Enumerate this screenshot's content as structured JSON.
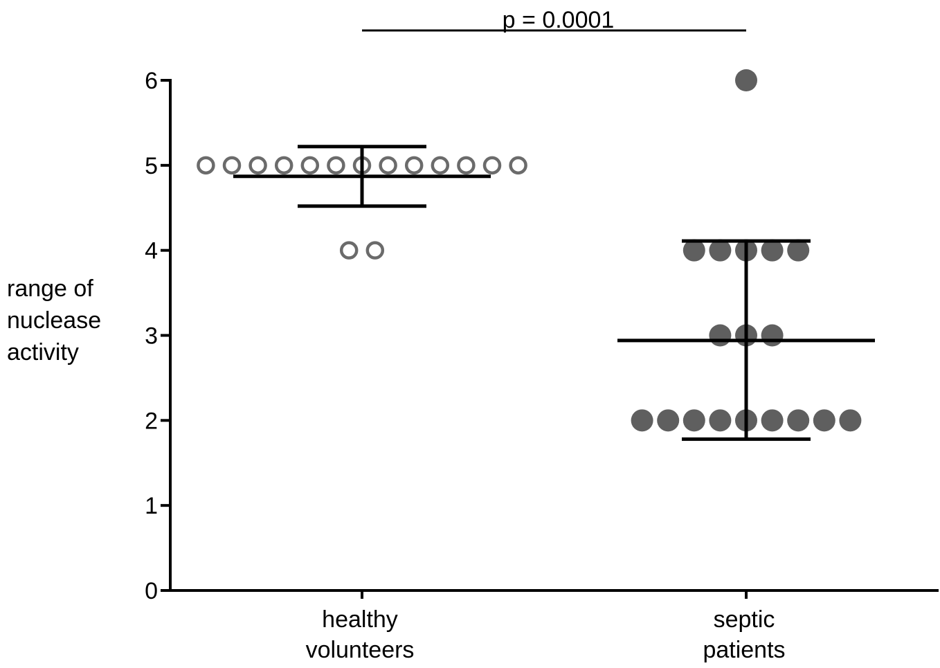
{
  "chart_data": {
    "type": "scatter",
    "subtype": "dot-plot-with-error-bars",
    "title": "",
    "ylabel_lines": [
      "range of",
      "nuclease",
      "activity"
    ],
    "ylim": [
      0,
      6
    ],
    "yticks": [
      0,
      1,
      2,
      3,
      4,
      5,
      6
    ],
    "categories": [
      {
        "lines": [
          "healthy",
          "volunteers"
        ]
      },
      {
        "lines": [
          "septic",
          "patients"
        ]
      }
    ],
    "series": [
      {
        "category": 0,
        "marker": "open-circle",
        "values": [
          5,
          5,
          5,
          5,
          5,
          5,
          5,
          5,
          5,
          5,
          5,
          5,
          5,
          4,
          4
        ],
        "mean": 4.87,
        "error_low": 4.52,
        "error_high": 5.22
      },
      {
        "category": 1,
        "marker": "filled-circle",
        "values": [
          6,
          4,
          4,
          4,
          4,
          4,
          3,
          3,
          3,
          2,
          2,
          2,
          2,
          2,
          2,
          2,
          2,
          2
        ],
        "mean": 2.94,
        "error_low": 1.78,
        "error_high": 4.11
      }
    ],
    "annotation": {
      "text": "p = 0.0001",
      "from_category": 0,
      "to_category": 1
    },
    "grid": false,
    "legend": "none",
    "colors": {
      "axis": "#000000",
      "open_marker_stroke": "#6b6b6b",
      "filled_marker": "#5f5f5f",
      "error_bar": "#000000"
    }
  }
}
